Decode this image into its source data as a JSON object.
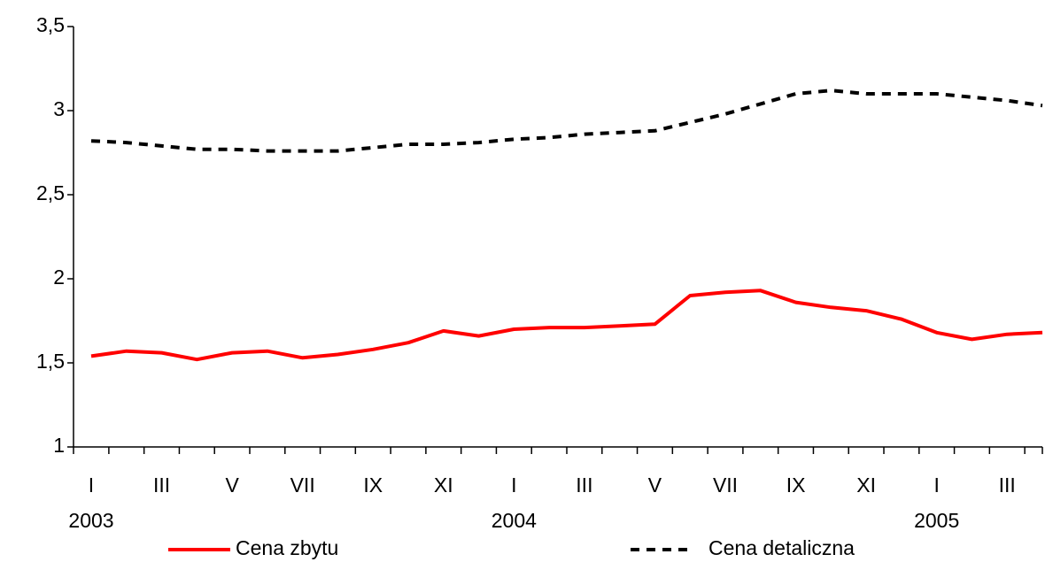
{
  "chart_data": {
    "type": "line",
    "categories": [
      "I",
      null,
      "III",
      null,
      "V",
      null,
      "VII",
      null,
      "IX",
      null,
      "XI",
      null,
      "I",
      null,
      "III",
      null,
      "V",
      null,
      "VII",
      null,
      "IX",
      null,
      "XI",
      null,
      "I",
      null,
      "III",
      null
    ],
    "years": [
      "2003",
      null,
      null,
      null,
      null,
      null,
      null,
      null,
      null,
      null,
      null,
      null,
      "2004",
      null,
      null,
      null,
      null,
      null,
      null,
      null,
      null,
      null,
      null,
      null,
      "2005",
      null,
      null,
      null
    ],
    "series": [
      {
        "name": "Cena zbytu",
        "color": "#ff0000",
        "dash": "solid",
        "values": [
          1.54,
          1.57,
          1.56,
          1.52,
          1.56,
          1.57,
          1.53,
          1.55,
          1.58,
          1.62,
          1.69,
          1.66,
          1.7,
          1.71,
          1.71,
          1.72,
          1.73,
          1.9,
          1.92,
          1.93,
          1.86,
          1.83,
          1.81,
          1.76,
          1.68,
          1.64,
          1.67,
          1.68
        ]
      },
      {
        "name": "Cena detaliczna",
        "color": "#000000",
        "dash": "dashed",
        "values": [
          2.82,
          2.81,
          2.79,
          2.77,
          2.77,
          2.76,
          2.76,
          2.76,
          2.78,
          2.8,
          2.8,
          2.81,
          2.83,
          2.84,
          2.86,
          2.87,
          2.88,
          2.93,
          2.98,
          3.04,
          3.1,
          3.12,
          3.1,
          3.1,
          3.1,
          3.08,
          3.06,
          3.03
        ]
      }
    ],
    "ylim": [
      1,
      3.5
    ],
    "yticks": [
      1,
      {
        "value": 1.5,
        "label": "1,5"
      },
      2,
      {
        "value": 2.5,
        "label": "2,5"
      },
      3,
      {
        "value": 3.5,
        "label": "3,5"
      }
    ],
    "legend": "bottom"
  }
}
